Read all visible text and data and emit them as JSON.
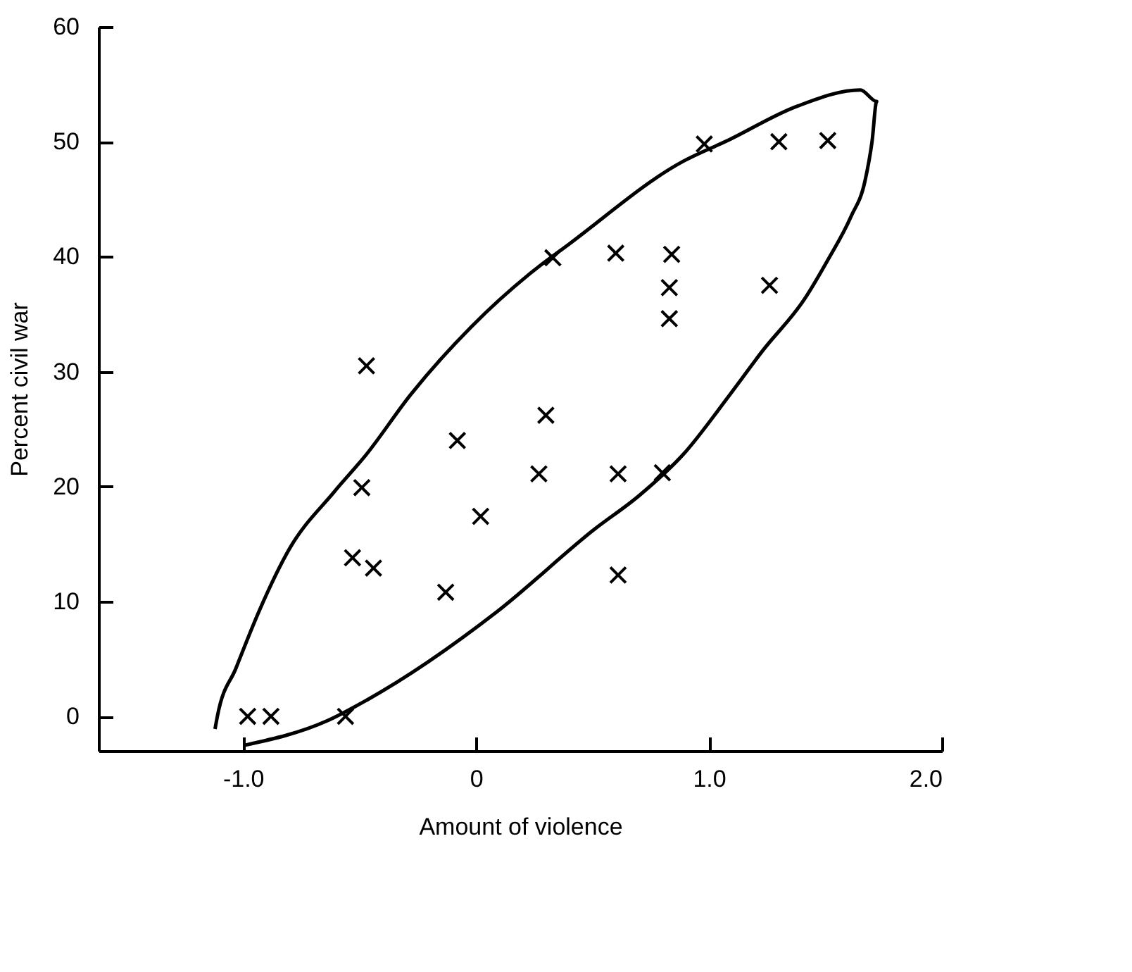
{
  "chart_data": {
    "type": "scatter",
    "xlabel": "Amount of violence",
    "ylabel": "Percent civil war",
    "xlim": [
      -1.62,
      2.0
    ],
    "ylim": [
      -3,
      60
    ],
    "xticks": [
      {
        "value": -1,
        "label": "-1.0"
      },
      0,
      {
        "value": 1,
        "label": "1.0"
      },
      {
        "value": 2,
        "label": "2.0"
      }
    ],
    "yticks": [
      0,
      10,
      20,
      30,
      40,
      50,
      60
    ],
    "grid": false,
    "series": [
      {
        "type": "scatter",
        "marker": "cross",
        "color": "#000000",
        "x": [
          -0.98,
          -0.88,
          -0.56,
          -0.47,
          -0.49,
          -0.53,
          -0.44,
          -0.13,
          -0.08,
          0.02,
          0.27,
          0.3,
          0.61,
          0.8,
          0.61,
          0.98,
          1.3,
          1.51,
          0.33,
          0.6,
          0.84,
          0.83,
          0.83,
          1.26
        ],
        "values": [
          0,
          0,
          0,
          30.5,
          19.9,
          13.8,
          12.9,
          10.8,
          24.0,
          17.4,
          21.1,
          26.2,
          21.1,
          21.2,
          12.3,
          49.8,
          50.0,
          50.1,
          39.9,
          40.3,
          40.2,
          37.3,
          34.6,
          37.5
        ]
      },
      {
        "type": "line",
        "color": "#000000",
        "x": [
          -0.99,
          -0.64,
          -0.47,
          0.09,
          0.51,
          0.7,
          0.89,
          1.09,
          1.23,
          1.41,
          1.51,
          1.61,
          1.67,
          1.7,
          1.72,
          1.65,
          1.38,
          1.08,
          0.89,
          0.4,
          0.23,
          -0.02,
          -0.28,
          -0.47,
          -0.61,
          -0.8,
          -0.93,
          -1.03,
          -1.11,
          -1.12
        ],
        "values": [
          -2.5,
          -0.4,
          1.4,
          9.1,
          16.3,
          19.2,
          22.8,
          28.0,
          31.8,
          36.3,
          39.7,
          43.5,
          46.6,
          50.0,
          53.5,
          54.5,
          53.1,
          50.1,
          48.3,
          41.1,
          38.5,
          33.9,
          28.0,
          22.8,
          19.5,
          14.6,
          9.2,
          4.2,
          0,
          -1.1
        ]
      }
    ]
  }
}
